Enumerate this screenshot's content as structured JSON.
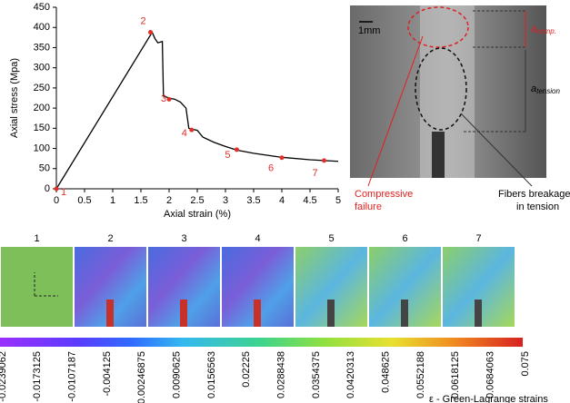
{
  "chart_data": {
    "type": "line",
    "xlabel": "Axial strain (%)",
    "ylabel": "Axial stress (Mpa)",
    "xlim": [
      0,
      5
    ],
    "ylim": [
      0,
      450
    ],
    "xticks": [
      0,
      0.5,
      1,
      1.5,
      2,
      2.5,
      3,
      3.5,
      4,
      4.5,
      5
    ],
    "yticks": [
      0,
      50,
      100,
      150,
      200,
      250,
      300,
      350,
      400,
      450
    ],
    "series": [
      {
        "color": "#000000",
        "x": [
          0,
          1.7,
          1.75,
          1.8,
          1.88,
          1.9,
          2.0,
          2.1,
          2.2,
          2.3,
          2.35,
          2.4,
          2.5,
          2.6,
          2.8,
          3.0,
          3.2,
          3.5,
          4.0,
          4.5,
          5.0
        ],
        "values": [
          0,
          388,
          372,
          362,
          365,
          230,
          225,
          222,
          215,
          200,
          150,
          148,
          145,
          128,
          115,
          105,
          96,
          88,
          78,
          72,
          68
        ]
      },
      {
        "color": "#e0302a",
        "x": [
          0,
          1.67,
          2.0,
          2.4,
          3.2,
          4.0,
          4.75
        ],
        "values": [
          0,
          388,
          222,
          146,
          97,
          77,
          70
        ],
        "point_labels": [
          "1",
          "2",
          "3",
          "4",
          "5",
          "6",
          "7"
        ]
      }
    ]
  },
  "figure": {
    "scale_bar": "1mm",
    "a_comp": {
      "symbol": "a",
      "subscript": "comp."
    },
    "a_tension": {
      "symbol": "a",
      "subscript": "tension"
    },
    "compressive_failure": [
      "Compressive",
      "failure"
    ],
    "fibers_breakage": [
      "Fibers breakage",
      "in tension"
    ],
    "panel_labels": [
      "1",
      "2",
      "3",
      "4",
      "5",
      "6",
      "7"
    ],
    "colorbar_labels": [
      "-0.0239062",
      "-0.0173125",
      "-0.0107187",
      "-0.004125",
      "0.00246875",
      "0.0090625",
      "0.0156563",
      "0.02225",
      "0.0288438",
      "0.0354375",
      "0.0420313",
      "0.048625",
      "0.0552188",
      "0.0618125",
      "0.0684063",
      "0.075"
    ],
    "colorbar_title": "ε - Green-Lagrange strains"
  }
}
